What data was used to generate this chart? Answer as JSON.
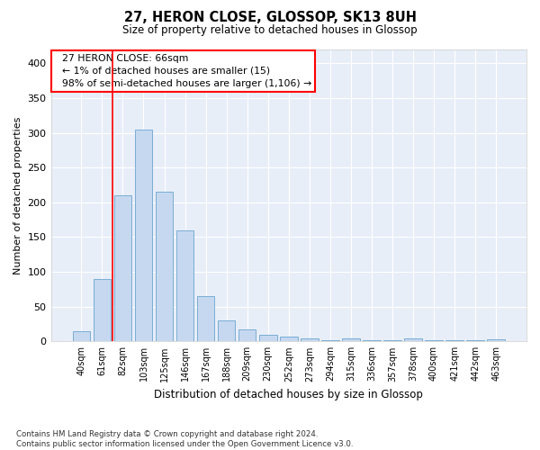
{
  "title": "27, HERON CLOSE, GLOSSOP, SK13 8UH",
  "subtitle": "Size of property relative to detached houses in Glossop",
  "xlabel": "Distribution of detached houses by size in Glossop",
  "ylabel": "Number of detached properties",
  "bar_color": "#c5d8f0",
  "bar_edge_color": "#7aadd4",
  "categories": [
    "40sqm",
    "61sqm",
    "82sqm",
    "103sqm",
    "125sqm",
    "146sqm",
    "167sqm",
    "188sqm",
    "209sqm",
    "230sqm",
    "252sqm",
    "273sqm",
    "294sqm",
    "315sqm",
    "336sqm",
    "357sqm",
    "378sqm",
    "400sqm",
    "421sqm",
    "442sqm",
    "463sqm"
  ],
  "values": [
    15,
    90,
    210,
    305,
    215,
    160,
    65,
    30,
    17,
    10,
    7,
    4,
    2,
    4,
    2,
    2,
    4,
    2,
    2,
    2,
    3
  ],
  "ylim": [
    0,
    420
  ],
  "yticks": [
    0,
    50,
    100,
    150,
    200,
    250,
    300,
    350,
    400
  ],
  "annotation_text": "  27 HERON CLOSE: 66sqm\n  ← 1% of detached houses are smaller (15)\n  98% of semi-detached houses are larger (1,106) →",
  "bg_color": "#e8eef8",
  "grid_color": "#ffffff",
  "footer": "Contains HM Land Registry data © Crown copyright and database right 2024.\nContains public sector information licensed under the Open Government Licence v3.0.",
  "highlight_bar_index": 1,
  "vline_x": 1.5
}
